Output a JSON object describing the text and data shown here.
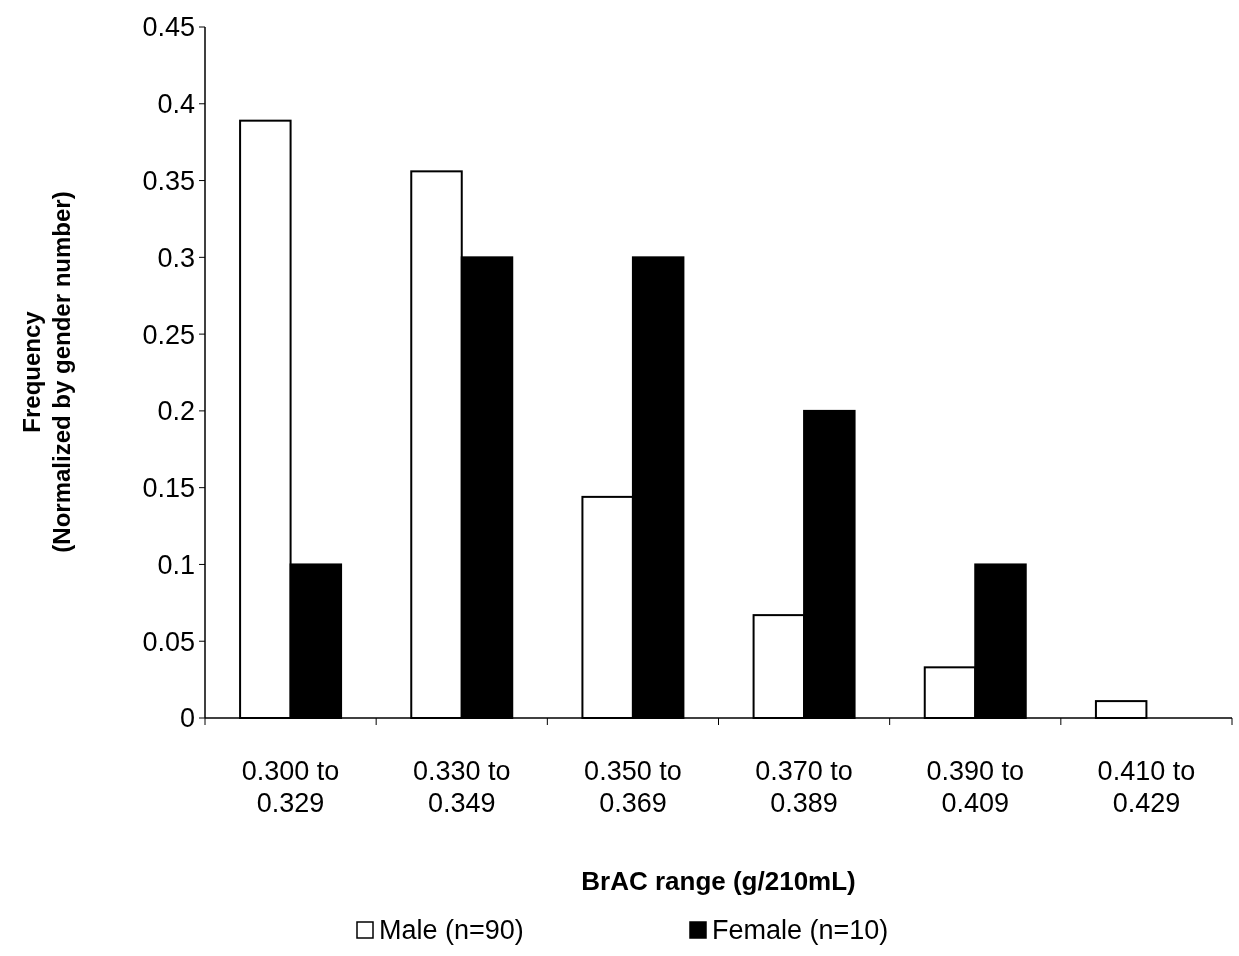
{
  "chart_data": {
    "type": "bar",
    "xlabel": "BrAC range (g/210mL)",
    "ylabel": "Frequency\n(Normalized by gender number)",
    "categories": [
      "0.300 to\n0.329",
      "0.330 to\n0.349",
      "0.350 to\n0.369",
      "0.370 to\n0.389",
      "0.390 to\n0.409",
      "0.410 to\n0.429"
    ],
    "series": [
      {
        "name": "Male (n=90)",
        "color": "#ffffff",
        "values": [
          0.389,
          0.356,
          0.144,
          0.067,
          0.033,
          0.011
        ]
      },
      {
        "name": "Female (n=10)",
        "color": "#000000",
        "values": [
          0.1,
          0.3,
          0.3,
          0.2,
          0.1,
          0
        ]
      }
    ],
    "ylim": [
      0,
      0.45
    ],
    "yticks": [
      0,
      0.05,
      0.1,
      0.15,
      0.2,
      0.25,
      0.3,
      0.35,
      0.4,
      0.45
    ],
    "grid": false,
    "legend": "bottom"
  }
}
